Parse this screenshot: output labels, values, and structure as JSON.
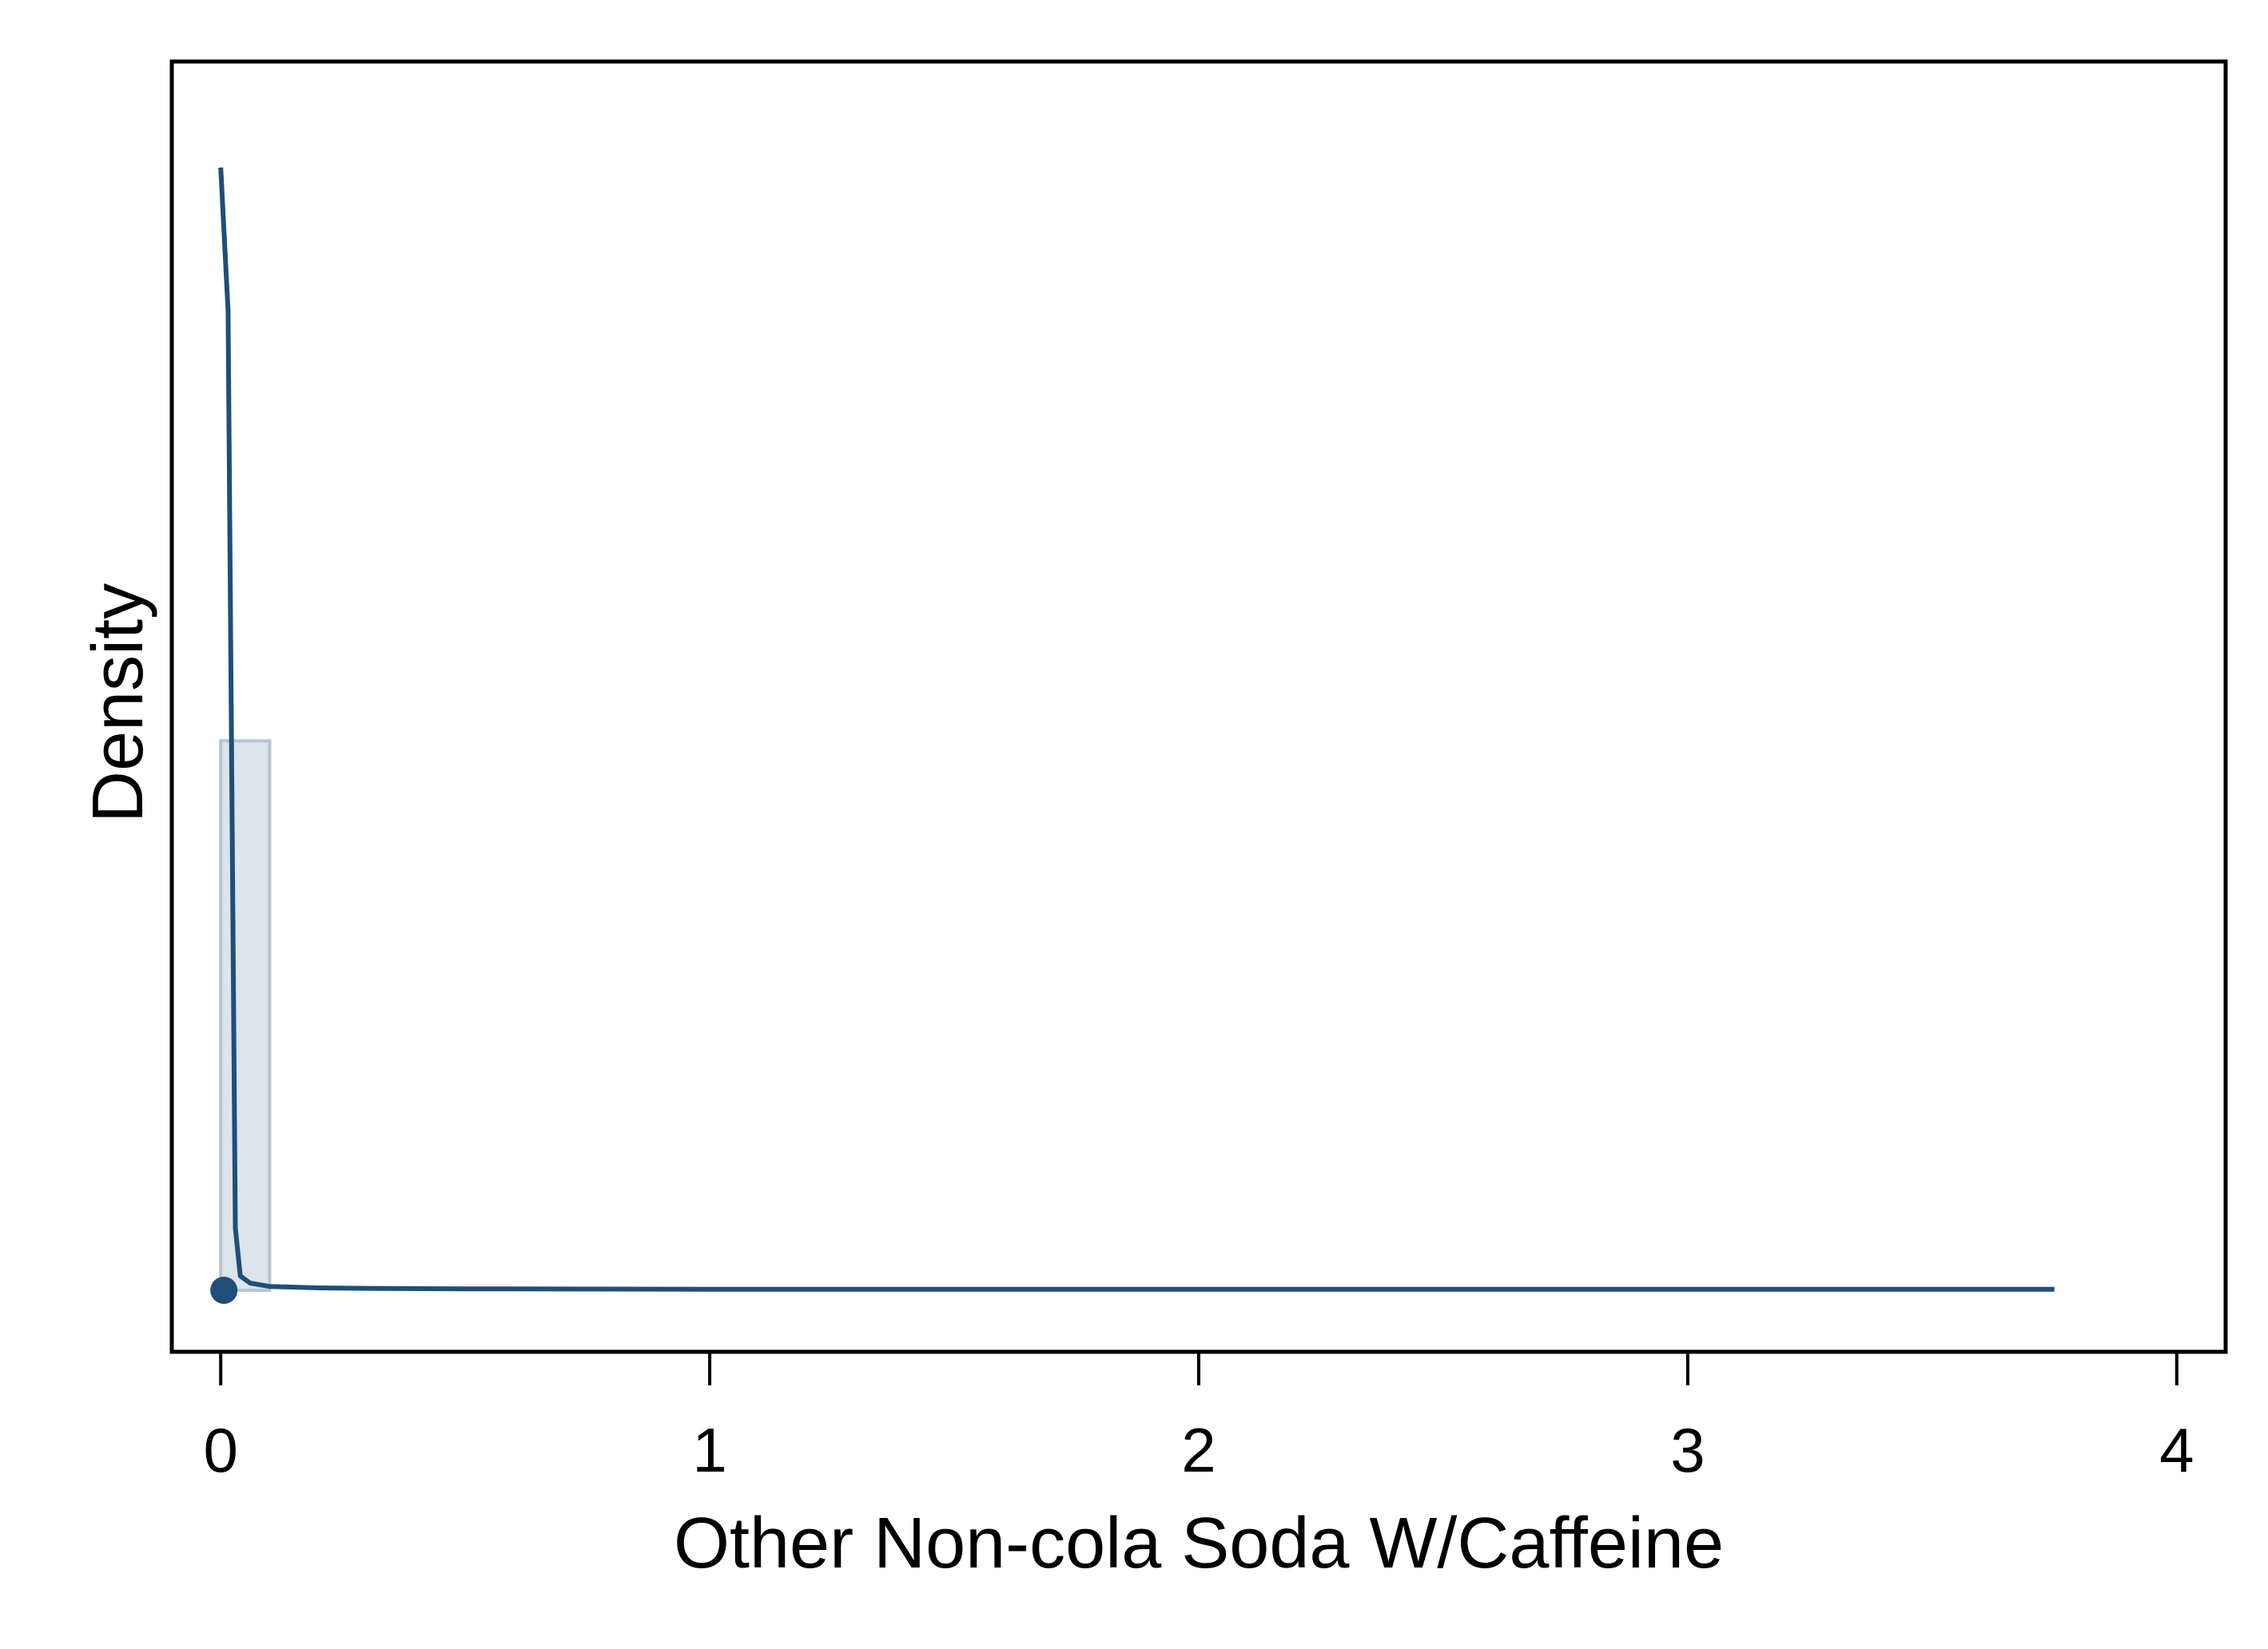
{
  "chart_data": {
    "type": "histogram-density",
    "title": "",
    "xlabel": "Other Non-cola Soda W/Caffeine",
    "ylabel": "Density",
    "xlim": [
      -0.1,
      4.1
    ],
    "ylim": [
      0,
      25
    ],
    "x_ticks": [
      0,
      1,
      2,
      3,
      4
    ],
    "x_tick_labels": [
      "0",
      "1",
      "2",
      "3",
      "4"
    ],
    "y_ticks_labeled": false,
    "grid": false,
    "legend": "none",
    "histogram": {
      "bins": [
        {
          "x0": 0.0,
          "x1": 0.1,
          "density": 11.5
        }
      ],
      "fill": "#dce4ec",
      "stroke": "#b7c5d3"
    },
    "density_curve": {
      "color": "#1f4e79",
      "x": [
        0.0,
        0.015,
        0.03,
        0.04,
        0.06,
        0.1,
        0.2,
        0.3,
        0.5,
        1.0,
        1.5,
        2.0,
        2.5,
        3.0,
        3.5,
        3.75
      ],
      "y": [
        23.5,
        20.5,
        1.3,
        0.3,
        0.15,
        0.08,
        0.05,
        0.04,
        0.03,
        0.02,
        0.02,
        0.02,
        0.02,
        0.02,
        0.02,
        0.02
      ]
    },
    "point_markers": {
      "color": "#1f4e79",
      "x": [
        0.0
      ],
      "y": [
        0.0
      ]
    },
    "rug": {
      "color": "#dce4ec",
      "x": [
        0.0
      ]
    }
  }
}
